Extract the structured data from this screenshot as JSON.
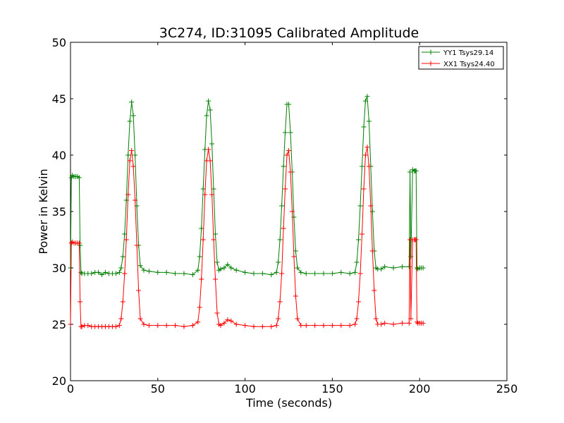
{
  "chart_data": {
    "type": "line",
    "title": "3C274, ID:31095 Calibrated Amplitude",
    "xlabel": "Time (seconds)",
    "ylabel": "Power in Kelvin",
    "xlim": [
      0,
      250
    ],
    "ylim": [
      20,
      50
    ],
    "xticks": [
      0,
      50,
      100,
      150,
      200,
      250
    ],
    "yticks": [
      20,
      25,
      30,
      35,
      40,
      45,
      50
    ],
    "grid": false,
    "legend_position": "top-right",
    "marker": "+",
    "series": [
      {
        "name": "YY1 Tsys29.14",
        "color": "#008000",
        "x": [
          0,
          0.5,
          1,
          2,
          3,
          4,
          5,
          5.5,
          6,
          6.5,
          8,
          10,
          12,
          14,
          16,
          18,
          20,
          22,
          24,
          26,
          28,
          29,
          30,
          31,
          32,
          33,
          34,
          35,
          36,
          37,
          38,
          39,
          40,
          42,
          45,
          50,
          55,
          60,
          65,
          70,
          73,
          74,
          75,
          76,
          77,
          78,
          79,
          80,
          81,
          82,
          83,
          84,
          85,
          86,
          88,
          90,
          92,
          95,
          100,
          105,
          110,
          115,
          118,
          119,
          120,
          121,
          122,
          123,
          124,
          125,
          126,
          127,
          128,
          129,
          130,
          132,
          135,
          140,
          145,
          150,
          155,
          160,
          163,
          164,
          165,
          166,
          167,
          168,
          169,
          170,
          171,
          172,
          173,
          174,
          175,
          176,
          178,
          180,
          185,
          190,
          194,
          194.5,
          195,
          196,
          197,
          197.5,
          198,
          198.5,
          199,
          200,
          201,
          202
        ],
        "y": [
          30.0,
          38.0,
          38.2,
          38.1,
          38.1,
          38.1,
          38.0,
          32.0,
          29.6,
          29.5,
          29.5,
          29.5,
          29.5,
          29.6,
          29.6,
          29.4,
          29.6,
          29.5,
          29.5,
          29.5,
          29.6,
          30.0,
          31.0,
          33.0,
          36.0,
          40.0,
          43.0,
          44.7,
          43.5,
          40.0,
          35.5,
          32.0,
          30.2,
          29.8,
          29.7,
          29.6,
          29.6,
          29.5,
          29.5,
          29.4,
          29.8,
          31.0,
          33.5,
          37.0,
          40.5,
          43.5,
          44.8,
          44.0,
          41.0,
          37.0,
          33.0,
          30.5,
          29.8,
          29.9,
          30.0,
          30.3,
          30.0,
          29.8,
          29.6,
          29.5,
          29.5,
          29.4,
          29.6,
          30.5,
          32.5,
          35.5,
          39.0,
          42.0,
          44.5,
          44.5,
          42.0,
          38.5,
          34.5,
          31.5,
          30.0,
          29.6,
          29.5,
          29.5,
          29.5,
          29.5,
          29.6,
          29.5,
          29.6,
          30.5,
          32.5,
          35.5,
          39.0,
          42.5,
          44.8,
          45.2,
          43.0,
          39.0,
          35.0,
          31.5,
          30.0,
          29.9,
          29.9,
          30.1,
          30.0,
          30.1,
          30.1,
          38.5,
          31.0,
          38.7,
          38.6,
          38.6,
          38.6,
          30.0,
          29.9,
          30.0,
          30.0,
          30.0
        ]
      },
      {
        "name": "XX1 Tsys24.40",
        "color": "#ff0000",
        "x": [
          0,
          0.5,
          1,
          2,
          3,
          4,
          5,
          5.5,
          6,
          6.5,
          8,
          10,
          12,
          14,
          16,
          18,
          20,
          22,
          24,
          26,
          28,
          29,
          30,
          31,
          32,
          33,
          34,
          35,
          36,
          37,
          38,
          39,
          40,
          42,
          45,
          50,
          55,
          60,
          65,
          70,
          73,
          74,
          75,
          76,
          77,
          78,
          79,
          80,
          81,
          82,
          83,
          84,
          85,
          86,
          88,
          90,
          92,
          95,
          100,
          105,
          110,
          115,
          118,
          119,
          120,
          121,
          122,
          123,
          124,
          125,
          126,
          127,
          128,
          129,
          130,
          132,
          135,
          140,
          145,
          150,
          155,
          160,
          163,
          164,
          165,
          166,
          167,
          168,
          169,
          170,
          171,
          172,
          173,
          174,
          175,
          176,
          178,
          180,
          185,
          190,
          194,
          194.5,
          195,
          196,
          197,
          197.5,
          198,
          198.5,
          199,
          200,
          201,
          202
        ],
        "y": [
          25.0,
          32.2,
          32.3,
          32.2,
          32.2,
          32.2,
          32.2,
          27.0,
          24.8,
          24.8,
          24.9,
          24.9,
          24.8,
          24.8,
          24.8,
          24.8,
          24.8,
          24.8,
          24.8,
          24.8,
          24.9,
          25.5,
          27.0,
          29.5,
          32.5,
          36.5,
          39.5,
          40.4,
          39.0,
          36.0,
          32.0,
          28.0,
          25.5,
          25.0,
          24.9,
          24.9,
          24.9,
          24.9,
          24.8,
          24.9,
          25.2,
          26.5,
          29.0,
          32.5,
          36.5,
          39.5,
          40.5,
          39.5,
          36.5,
          32.5,
          29.0,
          26.0,
          25.0,
          24.9,
          25.1,
          25.4,
          25.3,
          25.0,
          24.9,
          24.8,
          24.8,
          24.8,
          24.9,
          25.5,
          27.0,
          29.5,
          33.5,
          37.0,
          40.0,
          40.4,
          38.5,
          35.0,
          31.0,
          27.5,
          25.5,
          24.9,
          24.9,
          24.9,
          24.9,
          24.9,
          24.9,
          24.9,
          25.0,
          25.5,
          27.0,
          29.5,
          33.0,
          37.0,
          40.0,
          40.7,
          39.0,
          35.5,
          31.5,
          28.0,
          25.5,
          25.0,
          25.0,
          25.1,
          25.0,
          25.1,
          25.1,
          32.5,
          25.5,
          32.5,
          32.5,
          32.5,
          32.5,
          25.2,
          25.1,
          25.1,
          25.1,
          25.1
        ]
      }
    ]
  }
}
